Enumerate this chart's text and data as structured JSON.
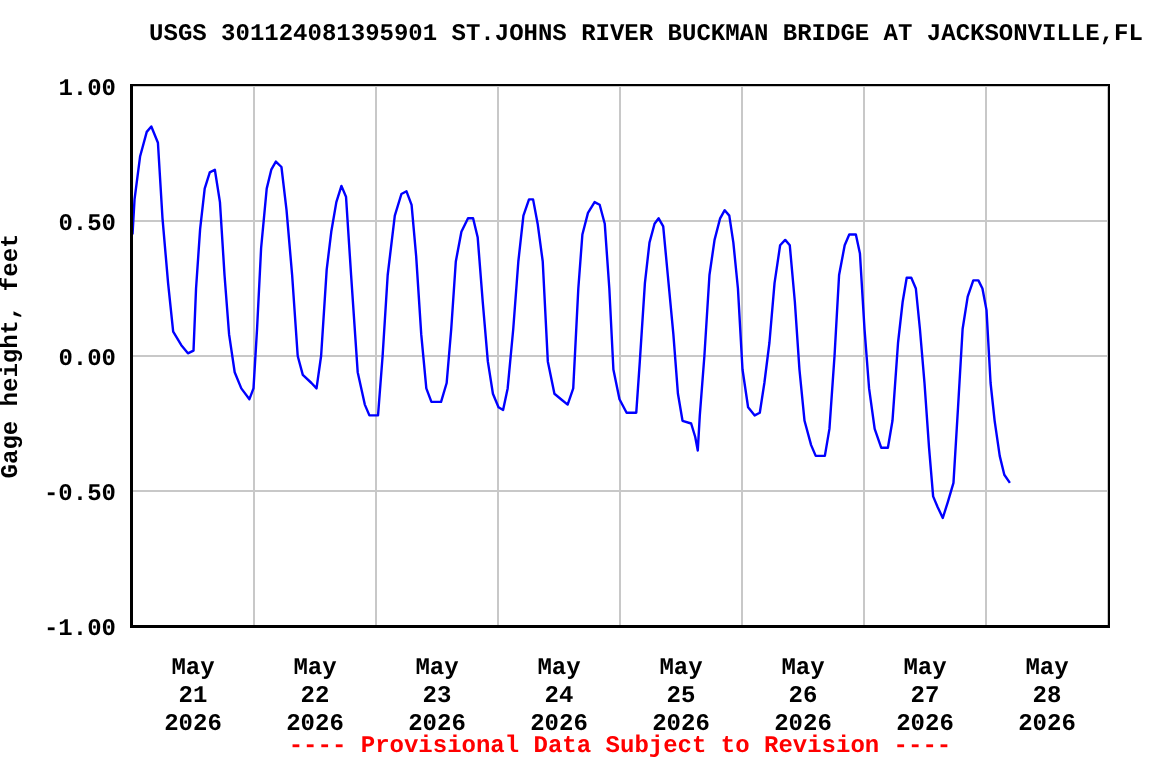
{
  "chart_data": {
    "type": "line",
    "title": "USGS 301124081395901 ST.JOHNS RIVER BUCKMAN BRIDGE AT JACKSONVILLE,FL",
    "ylabel": "Gage height, feet",
    "annotations": [
      "---- Provisional Data Subject to Revision ----"
    ],
    "x": [
      "2026-05-21T00:06",
      "2026-05-21T00:30",
      "2026-05-21T01:36",
      "2026-05-21T02:54",
      "2026-05-21T03:48",
      "2026-05-21T05:06",
      "2026-05-21T06:00",
      "2026-05-21T07:06",
      "2026-05-21T08:06",
      "2026-05-21T09:42",
      "2026-05-21T11:00",
      "2026-05-21T12:06",
      "2026-05-21T12:36",
      "2026-05-21T13:24",
      "2026-05-21T14:18",
      "2026-05-21T15:18",
      "2026-05-21T16:18",
      "2026-05-21T17:18",
      "2026-05-21T18:12",
      "2026-05-21T19:06",
      "2026-05-21T20:12",
      "2026-05-21T21:30",
      "2026-05-21T23:06",
      "2026-05-21T23:54",
      "2026-05-22T00:36",
      "2026-05-22T01:24",
      "2026-05-22T02:30",
      "2026-05-22T03:24",
      "2026-05-22T04:18",
      "2026-05-22T05:24",
      "2026-05-22T06:24",
      "2026-05-22T07:30",
      "2026-05-22T08:36",
      "2026-05-22T09:36",
      "2026-05-22T11:18",
      "2026-05-22T12:18",
      "2026-05-22T13:12",
      "2026-05-22T14:18",
      "2026-05-22T15:12",
      "2026-05-22T16:12",
      "2026-05-22T17:12",
      "2026-05-22T18:06",
      "2026-05-22T19:06",
      "2026-05-22T20:24",
      "2026-05-22T21:48",
      "2026-05-22T22:42",
      "2026-05-23T00:24",
      "2026-05-23T01:18",
      "2026-05-23T02:18",
      "2026-05-23T03:42",
      "2026-05-23T05:00",
      "2026-05-23T06:00",
      "2026-05-23T07:00",
      "2026-05-23T07:54",
      "2026-05-23T08:54",
      "2026-05-23T09:54",
      "2026-05-23T10:54",
      "2026-05-23T12:48",
      "2026-05-23T13:54",
      "2026-05-23T14:48",
      "2026-05-23T15:42",
      "2026-05-23T16:48",
      "2026-05-23T18:06",
      "2026-05-23T19:06",
      "2026-05-23T20:00",
      "2026-05-23T21:00",
      "2026-05-23T22:00",
      "2026-05-23T23:00",
      "2026-05-24T00:06",
      "2026-05-24T01:00",
      "2026-05-24T01:54",
      "2026-05-24T03:00",
      "2026-05-24T04:00",
      "2026-05-24T05:00",
      "2026-05-24T06:06",
      "2026-05-24T06:54",
      "2026-05-24T07:48",
      "2026-05-24T08:48",
      "2026-05-24T09:48",
      "2026-05-24T11:06",
      "2026-05-24T12:24",
      "2026-05-24T13:42",
      "2026-05-24T14:48",
      "2026-05-24T15:48",
      "2026-05-24T16:36",
      "2026-05-24T17:42",
      "2026-05-24T19:00",
      "2026-05-24T20:00",
      "2026-05-24T21:00",
      "2026-05-24T21:54",
      "2026-05-24T22:42",
      "2026-05-24T23:54",
      "2026-05-25T01:18",
      "2026-05-25T03:12",
      "2026-05-25T03:54",
      "2026-05-25T04:54",
      "2026-05-25T05:48",
      "2026-05-25T06:48",
      "2026-05-25T07:36",
      "2026-05-25T08:30",
      "2026-05-25T09:24",
      "2026-05-25T10:30",
      "2026-05-25T11:24",
      "2026-05-25T12:18",
      "2026-05-25T14:00",
      "2026-05-25T14:48",
      "2026-05-25T15:18",
      "2026-05-25T15:42",
      "2026-05-25T16:36",
      "2026-05-25T17:36",
      "2026-05-25T18:36",
      "2026-05-25T19:42",
      "2026-05-25T20:36",
      "2026-05-25T21:30",
      "2026-05-25T22:18",
      "2026-05-25T23:12",
      "2026-05-26T00:06",
      "2026-05-26T01:12",
      "2026-05-26T02:30",
      "2026-05-26T03:30",
      "2026-05-26T04:24",
      "2026-05-26T05:24",
      "2026-05-26T06:24",
      "2026-05-26T07:30",
      "2026-05-26T08:30",
      "2026-05-26T09:24",
      "2026-05-26T10:24",
      "2026-05-26T11:18",
      "2026-05-26T12:18",
      "2026-05-26T13:36",
      "2026-05-26T14:30",
      "2026-05-26T16:18",
      "2026-05-26T17:12",
      "2026-05-26T18:12",
      "2026-05-26T19:06",
      "2026-05-26T20:12",
      "2026-05-26T21:06",
      "2026-05-26T22:24",
      "2026-05-26T23:12",
      "2026-05-27T00:06",
      "2026-05-27T01:00",
      "2026-05-27T02:06",
      "2026-05-27T03:24",
      "2026-05-27T04:42",
      "2026-05-27T05:36",
      "2026-05-27T06:42",
      "2026-05-27T07:36",
      "2026-05-27T08:24",
      "2026-05-27T09:18",
      "2026-05-27T10:12",
      "2026-05-27T11:00",
      "2026-05-27T11:54",
      "2026-05-27T12:48",
      "2026-05-27T13:36",
      "2026-05-27T14:30",
      "2026-05-27T15:30",
      "2026-05-27T16:30",
      "2026-05-27T17:36",
      "2026-05-27T18:30",
      "2026-05-27T19:24",
      "2026-05-27T20:24",
      "2026-05-27T21:30",
      "2026-05-27T22:30",
      "2026-05-27T23:18",
      "2026-05-28T00:06",
      "2026-05-28T00:54",
      "2026-05-28T01:42",
      "2026-05-28T02:42",
      "2026-05-28T03:36",
      "2026-05-28T04:42"
    ],
    "series": [
      {
        "color": "#0000ff",
        "values": [
          0.45,
          0.58,
          0.74,
          0.83,
          0.85,
          0.79,
          0.51,
          0.27,
          0.09,
          0.04,
          0.01,
          0.02,
          0.25,
          0.47,
          0.62,
          0.68,
          0.69,
          0.57,
          0.3,
          0.08,
          -0.06,
          -0.12,
          -0.16,
          -0.12,
          0.1,
          0.4,
          0.62,
          0.69,
          0.72,
          0.7,
          0.54,
          0.3,
          0.0,
          -0.07,
          -0.1,
          -0.12,
          0.0,
          0.32,
          0.46,
          0.57,
          0.63,
          0.59,
          0.3,
          -0.06,
          -0.18,
          -0.22,
          -0.22,
          0.0,
          0.3,
          0.52,
          0.6,
          0.61,
          0.56,
          0.37,
          0.08,
          -0.12,
          -0.17,
          -0.17,
          -0.1,
          0.1,
          0.35,
          0.46,
          0.51,
          0.51,
          0.44,
          0.2,
          -0.02,
          -0.14,
          -0.19,
          -0.2,
          -0.12,
          0.1,
          0.35,
          0.52,
          0.58,
          0.58,
          0.49,
          0.35,
          -0.02,
          -0.14,
          -0.16,
          -0.18,
          -0.12,
          0.25,
          0.45,
          0.53,
          0.57,
          0.56,
          0.49,
          0.25,
          -0.05,
          -0.16,
          -0.21,
          -0.21,
          -0.02,
          0.27,
          0.42,
          0.49,
          0.51,
          0.48,
          0.3,
          0.08,
          -0.14,
          -0.24,
          -0.25,
          -0.3,
          -0.35,
          -0.22,
          0.0,
          0.3,
          0.43,
          0.51,
          0.54,
          0.52,
          0.42,
          0.25,
          -0.05,
          -0.19,
          -0.22,
          -0.21,
          -0.1,
          0.05,
          0.27,
          0.41,
          0.43,
          0.41,
          0.2,
          -0.05,
          -0.24,
          -0.33,
          -0.37,
          -0.37,
          -0.27,
          0.0,
          0.3,
          0.41,
          0.45,
          0.45,
          0.38,
          0.1,
          -0.12,
          -0.27,
          -0.34,
          -0.34,
          -0.24,
          0.05,
          0.2,
          0.29,
          0.29,
          0.25,
          0.1,
          -0.1,
          -0.34,
          -0.52,
          -0.56,
          -0.6,
          -0.54,
          -0.47,
          -0.19,
          0.1,
          0.22,
          0.28,
          0.28,
          0.25,
          0.17,
          -0.1,
          -0.24,
          -0.37,
          -0.44,
          -0.47
        ]
      }
    ],
    "xlim": [
      "2026-05-21T00:00",
      "2026-05-29T00:00"
    ],
    "xticks": [
      {
        "value": "2026-05-21T00:00",
        "label": null
      },
      {
        "value": "2026-05-21T12:00",
        "label": "May\n21\n2026"
      },
      {
        "value": "2026-05-22T00:00",
        "label": null
      },
      {
        "value": "2026-05-22T12:00",
        "label": "May\n22\n2026"
      },
      {
        "value": "2026-05-23T00:00",
        "label": null
      },
      {
        "value": "2026-05-23T12:00",
        "label": "May\n23\n2026"
      },
      {
        "value": "2026-05-24T00:00",
        "label": null
      },
      {
        "value": "2026-05-24T12:00",
        "label": "May\n24\n2026"
      },
      {
        "value": "2026-05-25T00:00",
        "label": null
      },
      {
        "value": "2026-05-25T12:00",
        "label": "May\n25\n2026"
      },
      {
        "value": "2026-05-26T00:00",
        "label": null
      },
      {
        "value": "2026-05-26T12:00",
        "label": "May\n26\n2026"
      },
      {
        "value": "2026-05-27T00:00",
        "label": null
      },
      {
        "value": "2026-05-27T12:00",
        "label": "May\n27\n2026"
      },
      {
        "value": "2026-05-28T00:00",
        "label": null
      },
      {
        "value": "2026-05-28T12:00",
        "label": "May\n28\n2026"
      },
      {
        "value": "2026-05-29T00:00",
        "label": null
      }
    ],
    "ylim": [
      -1,
      1
    ],
    "yticks": [
      {
        "value": -1,
        "label": "-1.00"
      },
      {
        "value": -0.5,
        "label": "-0.50"
      },
      {
        "value": 0,
        "label": "0.00"
      },
      {
        "value": 0.5,
        "label": "0.50"
      },
      {
        "value": 1,
        "label": "1.00"
      }
    ],
    "grid": true,
    "marker": "none",
    "line_style": "solid"
  }
}
